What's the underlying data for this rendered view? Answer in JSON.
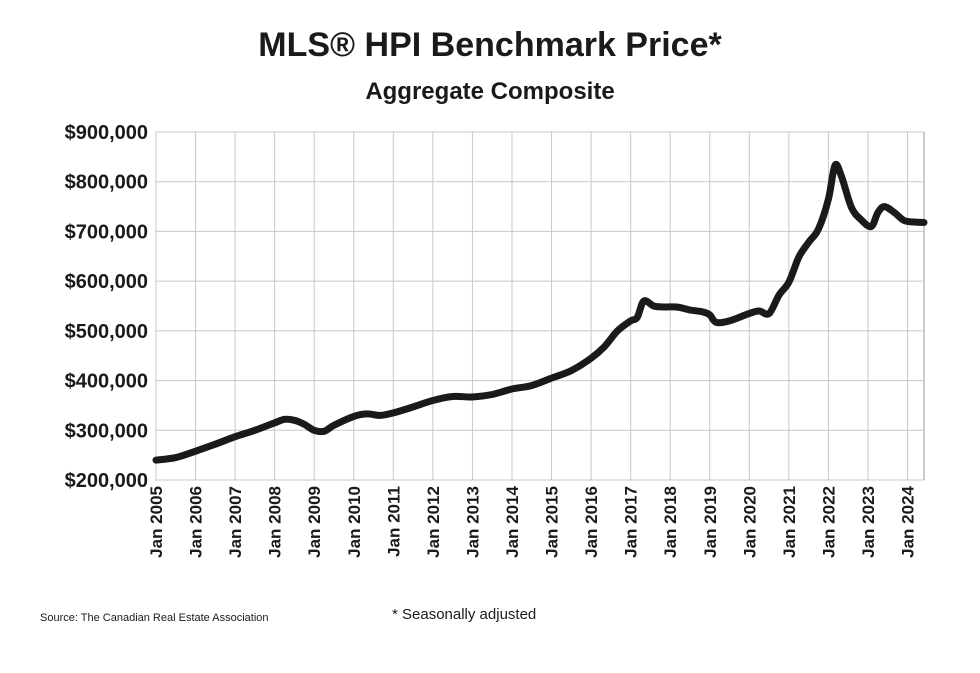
{
  "chart_data": {
    "type": "line",
    "title": "MLS® HPI Benchmark Price*",
    "subtitle": "Aggregate Composite",
    "footnote": "* Seasonally adjusted",
    "source": "Source: The Canadian Real Estate Association",
    "xlabel": "",
    "ylabel": "",
    "ylim": [
      200000,
      900000
    ],
    "xlim": [
      "2005-01",
      "2024-06"
    ],
    "grid": true,
    "y_ticks": [
      "$200,000",
      "$300,000",
      "$400,000",
      "$500,000",
      "$600,000",
      "$700,000",
      "$800,000",
      "$900,000"
    ],
    "x_ticks": [
      "Jan 2005",
      "Jan 2006",
      "Jan 2007",
      "Jan 2008",
      "Jan 2009",
      "Jan 2010",
      "Jan 2011",
      "Jan 2012",
      "Jan 2013",
      "Jan 2014",
      "Jan 2015",
      "Jan 2016",
      "Jan 2017",
      "Jan 2018",
      "Jan 2019",
      "Jan 2020",
      "Jan 2021",
      "Jan 2022",
      "Jan 2023",
      "Jan 2024"
    ],
    "series": [
      {
        "line_color": "#1a1a1a",
        "points": [
          [
            "2005-01",
            240000
          ],
          [
            "2005-07",
            245000
          ],
          [
            "2006-01",
            258000
          ],
          [
            "2006-07",
            272000
          ],
          [
            "2007-01",
            287000
          ],
          [
            "2007-07",
            300000
          ],
          [
            "2008-01",
            315000
          ],
          [
            "2008-04",
            322000
          ],
          [
            "2008-07",
            320000
          ],
          [
            "2008-10",
            312000
          ],
          [
            "2009-01",
            300000
          ],
          [
            "2009-04",
            298000
          ],
          [
            "2009-07",
            310000
          ],
          [
            "2010-01",
            328000
          ],
          [
            "2010-05",
            333000
          ],
          [
            "2010-09",
            330000
          ],
          [
            "2011-01",
            335000
          ],
          [
            "2011-07",
            347000
          ],
          [
            "2012-01",
            360000
          ],
          [
            "2012-07",
            368000
          ],
          [
            "2013-01",
            367000
          ],
          [
            "2013-07",
            372000
          ],
          [
            "2014-01",
            383000
          ],
          [
            "2014-07",
            390000
          ],
          [
            "2015-01",
            405000
          ],
          [
            "2015-07",
            420000
          ],
          [
            "2016-01",
            445000
          ],
          [
            "2016-05",
            468000
          ],
          [
            "2016-09",
            500000
          ],
          [
            "2017-01",
            520000
          ],
          [
            "2017-03",
            527000
          ],
          [
            "2017-05",
            560000
          ],
          [
            "2017-08",
            550000
          ],
          [
            "2017-11",
            548000
          ],
          [
            "2018-03",
            548000
          ],
          [
            "2018-07",
            542000
          ],
          [
            "2018-11",
            538000
          ],
          [
            "2019-01",
            532000
          ],
          [
            "2019-03",
            517000
          ],
          [
            "2019-07",
            520000
          ],
          [
            "2020-01",
            535000
          ],
          [
            "2020-04",
            540000
          ],
          [
            "2020-07",
            535000
          ],
          [
            "2020-10",
            572000
          ],
          [
            "2021-01",
            598000
          ],
          [
            "2021-04",
            648000
          ],
          [
            "2021-07",
            678000
          ],
          [
            "2021-10",
            705000
          ],
          [
            "2022-01",
            765000
          ],
          [
            "2022-03",
            833000
          ],
          [
            "2022-05",
            810000
          ],
          [
            "2022-08",
            748000
          ],
          [
            "2022-11",
            723000
          ],
          [
            "2023-02",
            710000
          ],
          [
            "2023-04",
            738000
          ],
          [
            "2023-06",
            750000
          ],
          [
            "2023-09",
            738000
          ],
          [
            "2023-12",
            722000
          ],
          [
            "2024-03",
            719000
          ],
          [
            "2024-06",
            718000
          ]
        ]
      }
    ]
  }
}
